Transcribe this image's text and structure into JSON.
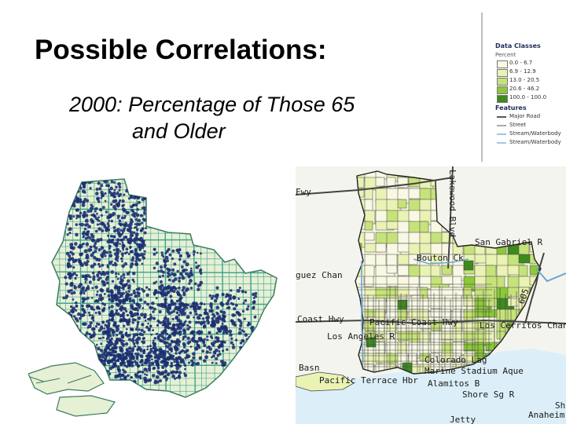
{
  "slide": {
    "title": "Possible Correlations:",
    "subtitle_line1": "2000: Percentage of Those 65",
    "subtitle_line2": "and Older"
  },
  "legend": {
    "header": "Data Classes",
    "subheader": "Percent",
    "classes": [
      {
        "label": "0.0 - 6.7",
        "color": "#f8f8e4"
      },
      {
        "label": "6.9 - 12.9",
        "color": "#eaf2b4"
      },
      {
        "label": "13.0 - 20.5",
        "color": "#c6e27a"
      },
      {
        "label": "20.6 - 46.2",
        "color": "#8cc83a"
      },
      {
        "label": "100.0 - 100.0",
        "color": "#3d8a1e"
      }
    ],
    "features_header": "Features",
    "features": [
      {
        "label": "Major Road",
        "color": "#555555"
      },
      {
        "label": "Street",
        "color": "#aaaaaa"
      },
      {
        "label": "Stream/Waterbody",
        "color": "#9fc7e8"
      },
      {
        "label": "Stream/Waterbody",
        "color": "#9fc7e8"
      }
    ]
  },
  "map_labels": {
    "fwy": "Fwy",
    "lakewood": "Lakewood Blvd",
    "san_gabriel": "San Gabriel R",
    "bouton": "Bouton Ck",
    "dominguez": "guez Chan",
    "coast_hwy": "Coast Hwy",
    "pacific_coast": "Pacific Coast Hwy",
    "los_cerritos": "Los Cerritos Chan",
    "los_angeles_r": "Los Angeles R",
    "colorado_lag": "Colorado Lag",
    "marine_stadium": "Marine Stadium Aque",
    "alamitos_b": "Alamitos B",
    "shore_sg_r": "Shore Sg R",
    "anaheim": "Anaheim",
    "basin": "Basn",
    "pacific_terrace": "Pacific Terrace Hbr",
    "jetty": "Jetty",
    "i605": "605",
    "sh": "Sh"
  }
}
